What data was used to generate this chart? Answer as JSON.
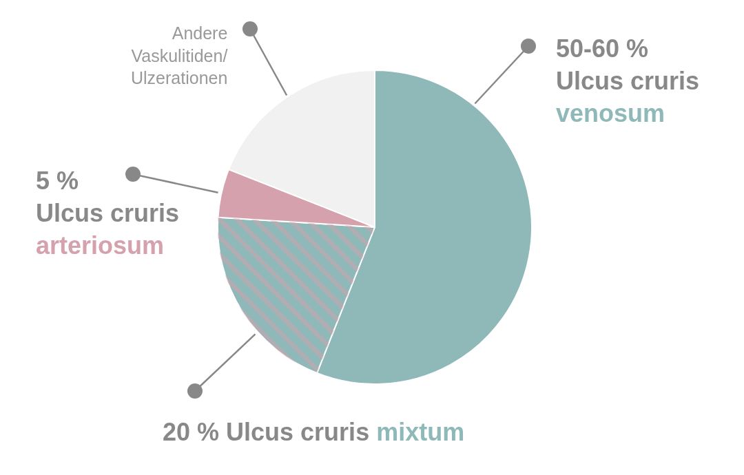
{
  "chart_data": {
    "type": "pie",
    "categories": [
      "Ulcus cruris venosum",
      "Ulcus cruris mixtum",
      "Ulcus cruris arteriosum",
      "Andere Vaskulitiden/ Ulzerationen"
    ],
    "values": [
      56,
      20,
      5,
      19
    ],
    "value_labels": [
      null,
      "20 %",
      "5 %",
      null
    ],
    "annotations": [
      "50-60 %"
    ],
    "colors": [
      "#8fb8b9",
      "#8fb8b9",
      "#d4a1ac",
      "#f1f1f1"
    ],
    "legend": false
  }
}
